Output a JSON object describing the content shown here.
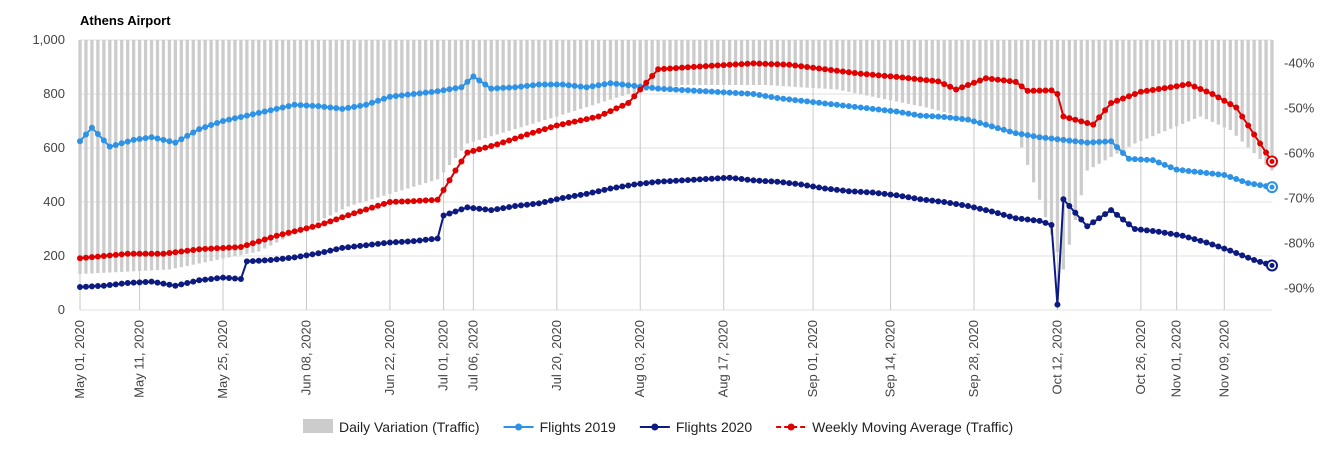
{
  "chart_data": {
    "type": "line",
    "title": "Athens Airport",
    "colors": {
      "variation": "#cccccc",
      "flights2019": "#2e93e6",
      "flights2020": "#0d1a80",
      "moving_avg": "#e00000"
    },
    "y_left": {
      "range": [
        0,
        1000
      ],
      "ticks": [
        0,
        200,
        400,
        600,
        800,
        1000
      ],
      "tick_labels": [
        "0",
        "200",
        "400",
        "600",
        "800",
        "1,000"
      ]
    },
    "y_right": {
      "range": [
        -95,
        -35
      ],
      "ticks": [
        -40,
        -50,
        -60,
        -70,
        -80,
        -90
      ],
      "tick_labels": [
        "-40%",
        "-50%",
        "-60%",
        "-70%",
        "-80%",
        "-90%"
      ]
    },
    "x_range": [
      "2020-05-01",
      "2020-11-17"
    ],
    "x_ticks": [
      {
        "date": "2020-05-01",
        "label": "May 01, 2020"
      },
      {
        "date": "2020-05-11",
        "label": "May 11, 2020"
      },
      {
        "date": "2020-05-25",
        "label": "May 25, 2020"
      },
      {
        "date": "2020-06-08",
        "label": "Jun 08, 2020"
      },
      {
        "date": "2020-06-22",
        "label": "Jun 22, 2020"
      },
      {
        "date": "2020-07-01",
        "label": "Jul 01, 2020"
      },
      {
        "date": "2020-07-06",
        "label": "Jul 06, 2020"
      },
      {
        "date": "2020-07-20",
        "label": "Jul 20, 2020"
      },
      {
        "date": "2020-08-03",
        "label": "Aug 03, 2020"
      },
      {
        "date": "2020-08-17",
        "label": "Aug 17, 2020"
      },
      {
        "date": "2020-09-01",
        "label": "Sep 01, 2020"
      },
      {
        "date": "2020-09-14",
        "label": "Sep 14, 2020"
      },
      {
        "date": "2020-09-28",
        "label": "Sep 28, 2020"
      },
      {
        "date": "2020-10-12",
        "label": "Oct 12, 2020"
      },
      {
        "date": "2020-10-26",
        "label": "Oct 26, 2020"
      },
      {
        "date": "2020-11-01",
        "label": "Nov 01, 2020"
      },
      {
        "date": "2020-11-09",
        "label": "Nov 09, 2020"
      }
    ],
    "series": [
      {
        "name": "Daily Variation (Traffic)",
        "type": "bar",
        "axis": "right",
        "points": [
          [
            "2020-05-01",
            -87
          ],
          [
            "2020-05-16",
            -86
          ],
          [
            "2020-05-31",
            -82
          ],
          [
            "2020-06-15",
            -72
          ],
          [
            "2020-06-30",
            -66
          ],
          [
            "2020-07-05",
            -58
          ],
          [
            "2020-07-20",
            -52
          ],
          [
            "2020-08-01",
            -47
          ],
          [
            "2020-08-10",
            -45
          ],
          [
            "2020-08-24",
            -45
          ],
          [
            "2020-09-05",
            -46
          ],
          [
            "2020-09-20",
            -50
          ],
          [
            "2020-10-05",
            -55
          ],
          [
            "2020-10-13",
            -86
          ],
          [
            "2020-10-17",
            -64
          ],
          [
            "2020-10-25",
            -58
          ],
          [
            "2020-11-05",
            -52
          ],
          [
            "2020-11-10",
            -55
          ],
          [
            "2020-11-17",
            -64
          ]
        ]
      },
      {
        "name": "Flights 2019",
        "type": "line",
        "axis": "left",
        "points": [
          [
            "2020-05-01",
            625
          ],
          [
            "2020-05-03",
            675
          ],
          [
            "2020-05-06",
            605
          ],
          [
            "2020-05-10",
            630
          ],
          [
            "2020-05-13",
            640
          ],
          [
            "2020-05-17",
            620
          ],
          [
            "2020-05-21",
            670
          ],
          [
            "2020-05-25",
            700
          ],
          [
            "2020-05-29",
            720
          ],
          [
            "2020-06-02",
            740
          ],
          [
            "2020-06-06",
            760
          ],
          [
            "2020-06-10",
            755
          ],
          [
            "2020-06-14",
            745
          ],
          [
            "2020-06-18",
            760
          ],
          [
            "2020-06-22",
            790
          ],
          [
            "2020-06-26",
            800
          ],
          [
            "2020-06-30",
            810
          ],
          [
            "2020-07-04",
            825
          ],
          [
            "2020-07-06",
            865
          ],
          [
            "2020-07-09",
            820
          ],
          [
            "2020-07-13",
            825
          ],
          [
            "2020-07-17",
            835
          ],
          [
            "2020-07-21",
            835
          ],
          [
            "2020-07-25",
            825
          ],
          [
            "2020-07-29",
            840
          ],
          [
            "2020-08-02",
            830
          ],
          [
            "2020-08-06",
            820
          ],
          [
            "2020-08-10",
            815
          ],
          [
            "2020-08-14",
            810
          ],
          [
            "2020-08-18",
            805
          ],
          [
            "2020-08-22",
            800
          ],
          [
            "2020-08-26",
            785
          ],
          [
            "2020-08-30",
            775
          ],
          [
            "2020-09-03",
            765
          ],
          [
            "2020-09-07",
            755
          ],
          [
            "2020-09-11",
            745
          ],
          [
            "2020-09-15",
            735
          ],
          [
            "2020-09-19",
            720
          ],
          [
            "2020-09-23",
            715
          ],
          [
            "2020-09-27",
            705
          ],
          [
            "2020-10-01",
            680
          ],
          [
            "2020-10-05",
            655
          ],
          [
            "2020-10-09",
            640
          ],
          [
            "2020-10-13",
            630
          ],
          [
            "2020-10-17",
            620
          ],
          [
            "2020-10-21",
            625
          ],
          [
            "2020-10-24",
            560
          ],
          [
            "2020-10-28",
            555
          ],
          [
            "2020-11-01",
            520
          ],
          [
            "2020-11-05",
            510
          ],
          [
            "2020-11-09",
            500
          ],
          [
            "2020-11-13",
            470
          ],
          [
            "2020-11-17",
            455
          ]
        ]
      },
      {
        "name": "Flights 2020",
        "type": "line",
        "axis": "left",
        "points": [
          [
            "2020-05-01",
            85
          ],
          [
            "2020-05-05",
            90
          ],
          [
            "2020-05-09",
            100
          ],
          [
            "2020-05-13",
            105
          ],
          [
            "2020-05-17",
            90
          ],
          [
            "2020-05-21",
            110
          ],
          [
            "2020-05-25",
            120
          ],
          [
            "2020-05-28",
            115
          ],
          [
            "2020-05-29",
            180
          ],
          [
            "2020-06-02",
            185
          ],
          [
            "2020-06-06",
            195
          ],
          [
            "2020-06-10",
            210
          ],
          [
            "2020-06-14",
            230
          ],
          [
            "2020-06-18",
            240
          ],
          [
            "2020-06-22",
            250
          ],
          [
            "2020-06-26",
            255
          ],
          [
            "2020-06-30",
            265
          ],
          [
            "2020-07-01",
            350
          ],
          [
            "2020-07-05",
            380
          ],
          [
            "2020-07-09",
            370
          ],
          [
            "2020-07-13",
            385
          ],
          [
            "2020-07-17",
            395
          ],
          [
            "2020-07-21",
            415
          ],
          [
            "2020-07-25",
            430
          ],
          [
            "2020-07-29",
            450
          ],
          [
            "2020-08-02",
            465
          ],
          [
            "2020-08-06",
            475
          ],
          [
            "2020-08-10",
            480
          ],
          [
            "2020-08-14",
            485
          ],
          [
            "2020-08-18",
            490
          ],
          [
            "2020-08-22",
            480
          ],
          [
            "2020-08-26",
            475
          ],
          [
            "2020-08-30",
            465
          ],
          [
            "2020-09-03",
            450
          ],
          [
            "2020-09-07",
            440
          ],
          [
            "2020-09-11",
            435
          ],
          [
            "2020-09-15",
            425
          ],
          [
            "2020-09-19",
            410
          ],
          [
            "2020-09-23",
            400
          ],
          [
            "2020-09-27",
            385
          ],
          [
            "2020-10-01",
            365
          ],
          [
            "2020-10-05",
            340
          ],
          [
            "2020-10-09",
            330
          ],
          [
            "2020-10-11",
            315
          ],
          [
            "2020-10-12",
            20
          ],
          [
            "2020-10-13",
            410
          ],
          [
            "2020-10-17",
            310
          ],
          [
            "2020-10-21",
            370
          ],
          [
            "2020-10-25",
            300
          ],
          [
            "2020-10-29",
            290
          ],
          [
            "2020-11-02",
            275
          ],
          [
            "2020-11-06",
            250
          ],
          [
            "2020-11-10",
            220
          ],
          [
            "2020-11-14",
            185
          ],
          [
            "2020-11-17",
            165
          ]
        ]
      },
      {
        "name": "Weekly Moving Average (Traffic)",
        "type": "line",
        "axis": "right",
        "dashed_gaps": true,
        "points": [
          [
            "2020-05-01",
            -83.5
          ],
          [
            "2020-05-09",
            -82.5
          ],
          [
            "2020-05-15",
            -82.5
          ],
          [
            "2020-05-21",
            -81.5
          ],
          [
            "2020-05-28",
            -81.0
          ],
          [
            "2020-06-03",
            -78.5
          ],
          [
            "2020-06-10",
            -76.2
          ],
          [
            "2020-06-16",
            -73.5
          ],
          [
            "2020-06-22",
            -71.0
          ],
          [
            "2020-06-26",
            -70.8
          ],
          [
            "2020-06-30",
            -70.5
          ],
          [
            "2020-07-03",
            -64.0
          ],
          [
            "2020-07-05",
            -60.0
          ],
          [
            "2020-07-10",
            -58.2
          ],
          [
            "2020-07-15",
            -56.0
          ],
          [
            "2020-07-20",
            -54.0
          ],
          [
            "2020-07-27",
            -52.0
          ],
          [
            "2020-08-01",
            -49.0
          ],
          [
            "2020-08-06",
            -41.5
          ],
          [
            "2020-08-14",
            -40.8
          ],
          [
            "2020-08-22",
            -40.2
          ],
          [
            "2020-08-28",
            -40.5
          ],
          [
            "2020-09-03",
            -41.5
          ],
          [
            "2020-09-09",
            -42.5
          ],
          [
            "2020-09-15",
            -43.2
          ],
          [
            "2020-09-22",
            -44.2
          ],
          [
            "2020-09-25",
            -46.0
          ],
          [
            "2020-09-30",
            -43.5
          ],
          [
            "2020-10-05",
            -44.3
          ],
          [
            "2020-10-07",
            -46.3
          ],
          [
            "2020-10-11",
            -46.2
          ],
          [
            "2020-10-12",
            -47.0
          ],
          [
            "2020-10-13",
            -52.0
          ],
          [
            "2020-10-18",
            -53.8
          ],
          [
            "2020-10-21",
            -49.0
          ],
          [
            "2020-10-26",
            -46.5
          ],
          [
            "2020-10-31",
            -45.5
          ],
          [
            "2020-11-03",
            -44.8
          ],
          [
            "2020-11-07",
            -47.0
          ],
          [
            "2020-11-11",
            -50.0
          ],
          [
            "2020-11-14",
            -56.0
          ],
          [
            "2020-11-17",
            -62.0
          ]
        ]
      }
    ],
    "legend": [
      {
        "label": "Daily Variation (Traffic)",
        "marker": "rect",
        "color": "#cccccc"
      },
      {
        "label": "Flights 2019",
        "marker": "line-dot",
        "color": "#2e93e6"
      },
      {
        "label": "Flights 2020",
        "marker": "line-dot",
        "color": "#0d1a80"
      },
      {
        "label": "Weekly Moving Average (Traffic)",
        "marker": "dash-dot",
        "color": "#e00000"
      }
    ],
    "legend_position": "bottom",
    "grid": true
  }
}
